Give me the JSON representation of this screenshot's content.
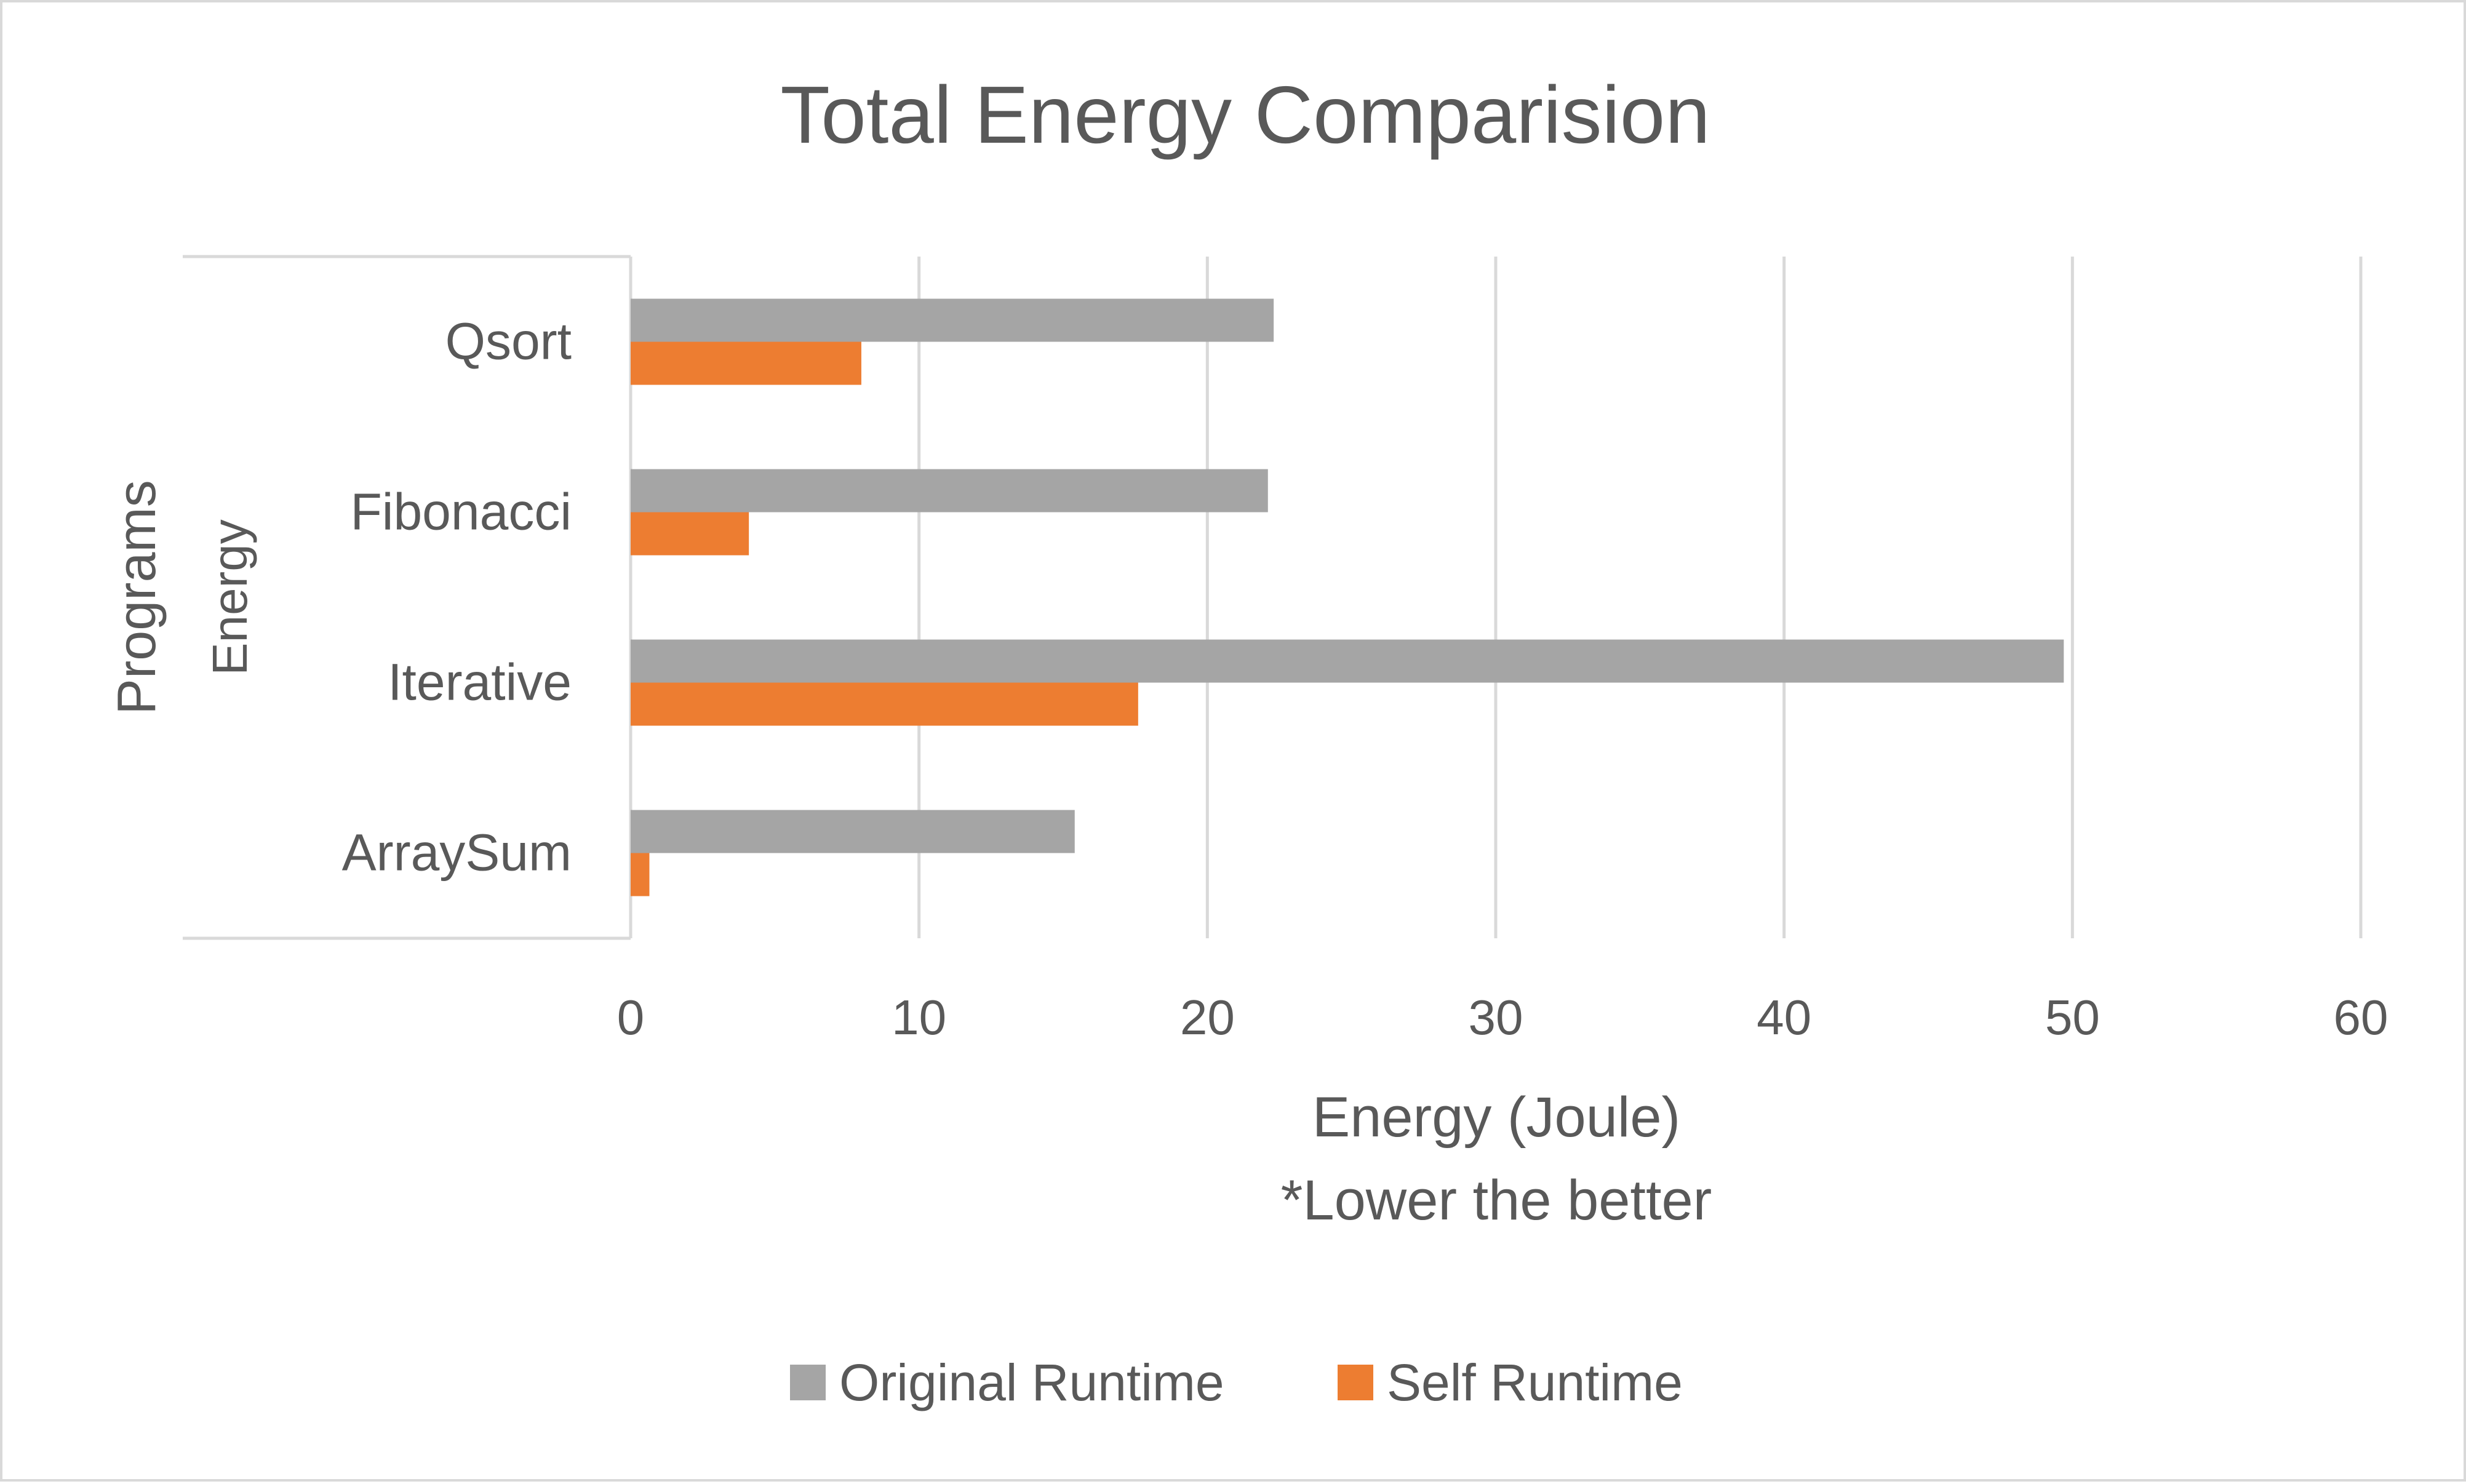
{
  "chart_data": {
    "type": "bar",
    "orientation": "horizontal",
    "title": "Total Energy Comparision",
    "xlabel": "Energy (Joule)",
    "xlabel_note": "*Lower the better",
    "ylabel_outer": "Programs",
    "ylabel_inner": "Energy",
    "categories": [
      "Qsort",
      "Fibonacci",
      "Iterative",
      "ArraySum"
    ],
    "series": [
      {
        "name": "Original Runtime",
        "color": "#a5a5a5",
        "values": [
          22.3,
          22.1,
          49.7,
          15.4
        ]
      },
      {
        "name": "Self Runtime",
        "color": "#ed7d31",
        "values": [
          8.0,
          4.1,
          17.6,
          0.65
        ]
      }
    ],
    "xlim": [
      0,
      60
    ],
    "xticks": [
      0,
      10,
      20,
      30,
      40,
      50,
      60
    ],
    "grid": true,
    "legend": "bottom"
  }
}
